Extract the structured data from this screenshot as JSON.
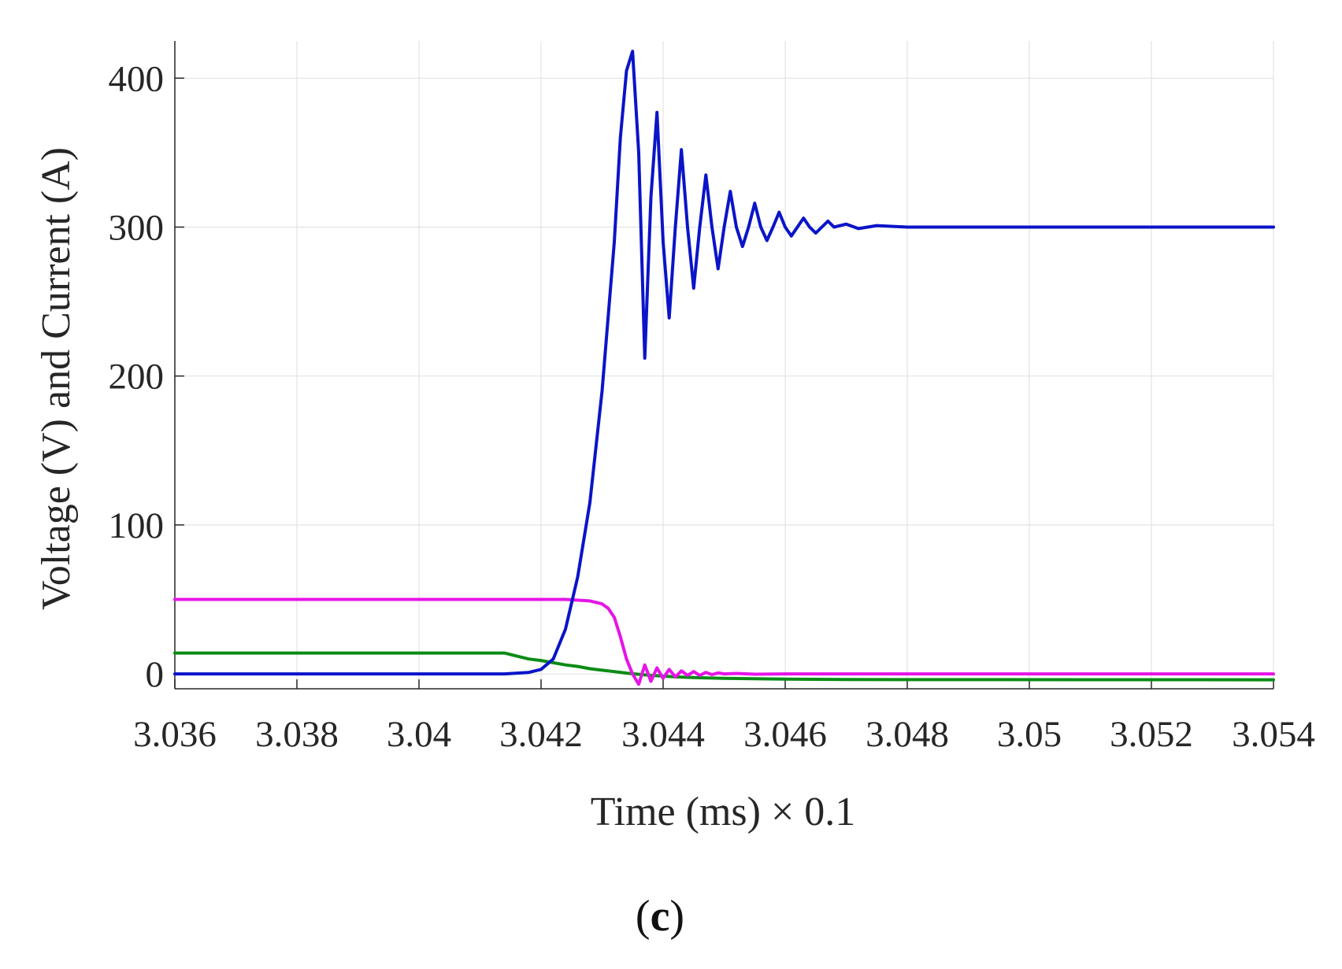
{
  "chart_data": {
    "type": "line",
    "xlabel": "Time (ms) × 0.1",
    "ylabel": "Voltage (V) and Current (A)",
    "panel_label": {
      "open": "(",
      "letter": "c",
      "close": ")"
    },
    "xlim": [
      3.036,
      3.054
    ],
    "ylim": [
      -10,
      425
    ],
    "x_ticks": [
      3.036,
      3.038,
      3.04,
      3.042,
      3.044,
      3.046,
      3.048,
      3.05,
      3.052,
      3.054
    ],
    "x_tick_labels": [
      "3.036",
      "3.038",
      "3.04",
      "3.042",
      "3.044",
      "3.046",
      "3.048",
      "3.05",
      "3.052",
      "3.054"
    ],
    "y_ticks": [
      0,
      100,
      200,
      300,
      400
    ],
    "y_tick_labels": [
      "0",
      "100",
      "200",
      "300",
      "400"
    ],
    "grid": true,
    "series": [
      {
        "color": "#0a14c8",
        "x": [
          3.036,
          3.0414,
          3.0418,
          3.042,
          3.0422,
          3.0424,
          3.0426,
          3.0428,
          3.043,
          3.0432,
          3.0433,
          3.0434,
          3.0435,
          3.0436,
          3.0437,
          3.0438,
          3.0439,
          3.044,
          3.0441,
          3.0442,
          3.0443,
          3.0444,
          3.0445,
          3.0446,
          3.0447,
          3.0448,
          3.0449,
          3.045,
          3.0451,
          3.0452,
          3.0453,
          3.0454,
          3.0455,
          3.0456,
          3.0457,
          3.0458,
          3.0459,
          3.046,
          3.0461,
          3.0462,
          3.0463,
          3.0464,
          3.0465,
          3.0466,
          3.0467,
          3.0468,
          3.047,
          3.0472,
          3.0475,
          3.048,
          3.054
        ],
        "y": [
          0,
          0,
          1,
          3,
          10,
          30,
          65,
          115,
          190,
          290,
          360,
          405,
          418,
          350,
          212,
          320,
          377,
          290,
          239,
          300,
          352,
          300,
          259,
          300,
          335,
          300,
          272,
          300,
          324,
          300,
          287,
          300,
          316,
          300,
          291,
          300,
          310,
          300,
          294,
          300,
          306,
          300,
          296,
          300,
          304,
          300,
          302,
          299,
          301,
          300,
          300
        ]
      },
      {
        "color": "#e614e6",
        "x": [
          3.036,
          3.042,
          3.0424,
          3.0428,
          3.043,
          3.0431,
          3.0432,
          3.0433,
          3.0434,
          3.0435,
          3.0436,
          3.0437,
          3.0438,
          3.0439,
          3.044,
          3.0441,
          3.0442,
          3.0443,
          3.0444,
          3.0445,
          3.0446,
          3.0447,
          3.0448,
          3.0449,
          3.045,
          3.0452,
          3.0455,
          3.046,
          3.054
        ],
        "y": [
          50,
          50,
          50,
          49,
          47,
          44,
          38,
          25,
          10,
          0,
          -7,
          6,
          -5,
          4,
          -3,
          3,
          -2,
          2,
          -1,
          1.5,
          -1,
          1,
          -0.5,
          0.6,
          0,
          0.3,
          -0.2,
          0,
          0
        ]
      },
      {
        "color": "#0a8c14",
        "x": [
          3.036,
          3.0414,
          3.0416,
          3.0418,
          3.042,
          3.0422,
          3.0424,
          3.0426,
          3.0428,
          3.043,
          3.0432,
          3.0434,
          3.0436,
          3.0438,
          3.044,
          3.0442,
          3.0445,
          3.045,
          3.046,
          3.047,
          3.054
        ],
        "y": [
          14,
          14,
          12,
          10,
          9,
          7.5,
          6,
          5,
          3.5,
          2.5,
          1.5,
          0.5,
          -0.3,
          -1,
          -1.5,
          -2,
          -2.5,
          -3,
          -3.5,
          -3.8,
          -4
        ]
      }
    ]
  }
}
